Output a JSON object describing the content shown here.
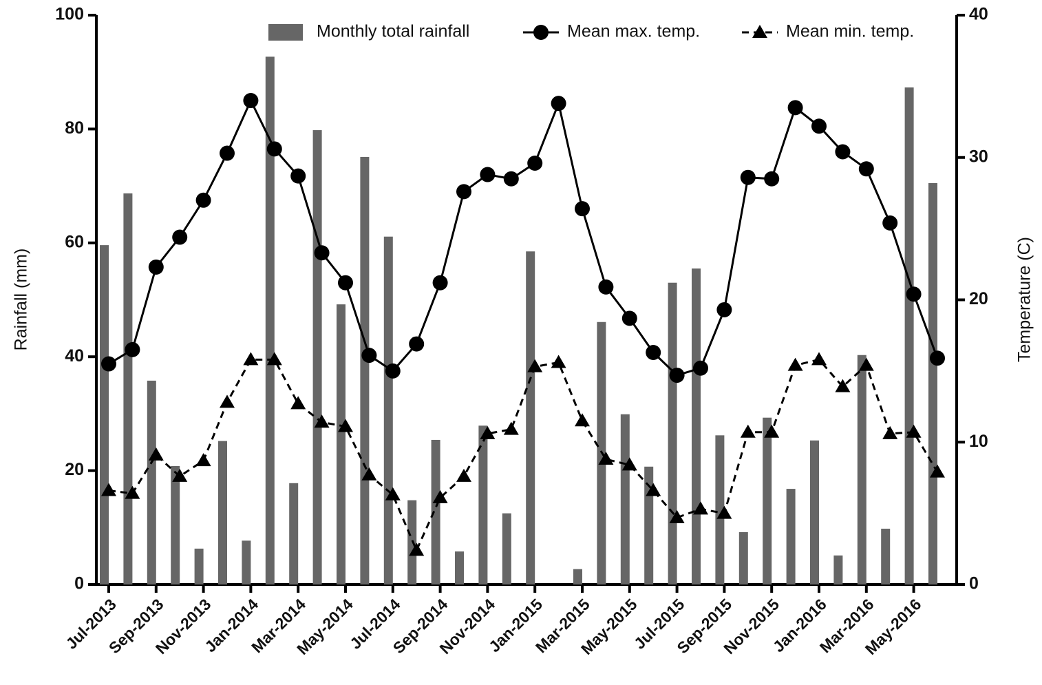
{
  "chart_data": {
    "type": "combo",
    "categories": [
      "Jul-2013",
      null,
      "Sep-2013",
      null,
      "Nov-2013",
      null,
      "Jan-2014",
      null,
      "Mar-2014",
      null,
      "May-2014",
      null,
      "Jul-2014",
      null,
      "Sep-2014",
      null,
      "Nov-2014",
      null,
      "Jan-2015",
      null,
      "Mar-2015",
      null,
      "May-2015",
      null,
      "Jul-2015",
      null,
      "Sep-2015",
      null,
      "Nov-2015",
      null,
      "Jan-2016",
      null,
      "Mar-2016",
      null,
      "May-2016",
      null
    ],
    "y_label": "Rainfall (mm)",
    "y2_label": "Temperature (C)",
    "ylim": [
      0,
      100
    ],
    "yticks": [
      0,
      20,
      40,
      60,
      80,
      100
    ],
    "y2lim": [
      0,
      40
    ],
    "y2ticks": [
      0,
      10,
      20,
      30,
      40
    ],
    "legend": "top",
    "series": [
      {
        "name": "Monthly total rainfall",
        "type": "bar",
        "color": "#666666",
        "axis": "y",
        "values": [
          59.6,
          68.7,
          35.8,
          20.8,
          6.3,
          25.2,
          7.7,
          92.7,
          17.8,
          79.8,
          49.2,
          75.1,
          61.1,
          14.8,
          25.4,
          5.8,
          27.9,
          12.5,
          58.5,
          0,
          2.7,
          46.1,
          29.9,
          20.7,
          53.0,
          55.5,
          26.2,
          9.2,
          29.3,
          16.8,
          25.3,
          5.1,
          40.3,
          9.8,
          87.3,
          70.5
        ]
      },
      {
        "name": "Mean max. temp.",
        "type": "line",
        "color": "#000000",
        "axis": "y2",
        "marker": "circle",
        "dashed": false,
        "values": [
          15.5,
          16.5,
          22.3,
          24.4,
          27.0,
          30.3,
          34.0,
          30.6,
          28.7,
          23.3,
          21.2,
          16.1,
          15.0,
          16.9,
          21.2,
          27.6,
          28.8,
          28.5,
          29.6,
          33.8,
          26.4,
          20.9,
          18.7,
          16.3,
          14.7,
          15.2,
          19.3,
          28.6,
          28.5,
          33.5,
          32.2,
          30.4,
          29.2,
          25.4,
          20.4,
          15.9
        ]
      },
      {
        "name": "Mean min. temp.",
        "type": "line",
        "color": "#000000",
        "axis": "y2",
        "marker": "triangle",
        "dashed": true,
        "values": [
          6.6,
          6.4,
          9.1,
          7.6,
          8.7,
          12.8,
          15.8,
          15.8,
          12.7,
          11.4,
          11.1,
          7.7,
          6.3,
          2.4,
          6.1,
          7.6,
          10.6,
          10.9,
          15.3,
          15.6,
          11.5,
          8.8,
          8.4,
          6.6,
          4.7,
          5.3,
          5.0,
          10.7,
          10.7,
          15.4,
          15.8,
          13.9,
          15.4,
          10.6,
          10.7,
          7.9
        ]
      }
    ]
  }
}
